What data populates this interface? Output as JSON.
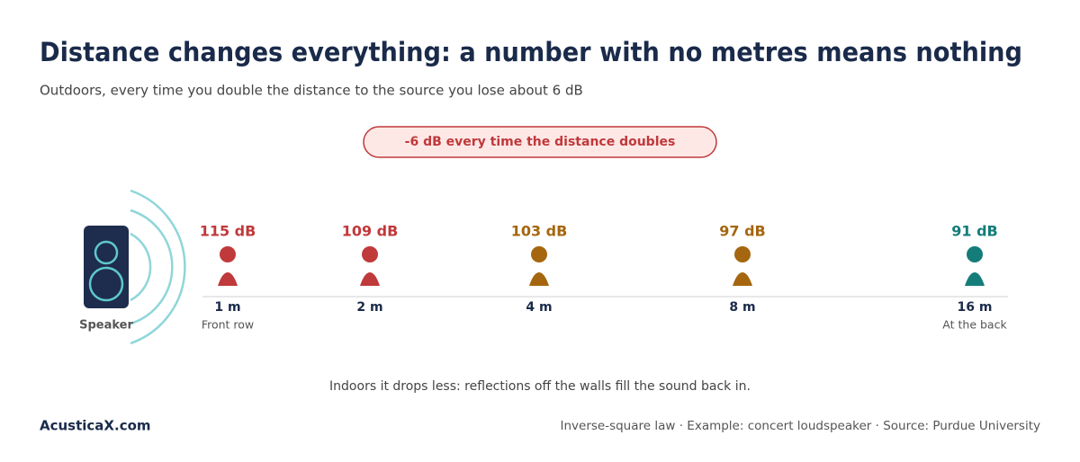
{
  "title": "Distance changes everything: a number with no metres means nothing",
  "subtitle": "Outdoors, every time you double the distance to the source you lose about 6 dB",
  "badge": "-6 dB every time the distance doubles",
  "speaker_label": "Speaker",
  "points": [
    {
      "level": "115 dB",
      "distance": "1 m",
      "note": "Front row",
      "color": "#c0393b"
    },
    {
      "level": "109 dB",
      "distance": "2 m",
      "color": "#c0393b"
    },
    {
      "level": "103 dB",
      "distance": "4 m",
      "color": "#a5660f"
    },
    {
      "level": "97 dB",
      "distance": "8 m",
      "color": "#a5660f"
    },
    {
      "level": "91 dB",
      "distance": "16 m",
      "note": "At the back",
      "color": "#147d7a"
    }
  ],
  "footnote": "Indoors it drops less: reflections off the walls fill the sound back in.",
  "brand": "AcusticaX.com",
  "source": "Inverse-square law · Example: concert loudspeaker · Source: Purdue University"
}
